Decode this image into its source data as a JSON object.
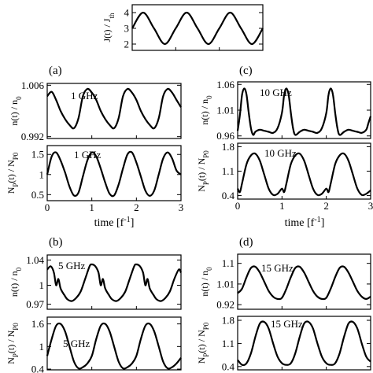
{
  "figure": {
    "panel_labels": [
      "(a)",
      "(b)",
      "(c)",
      "(d)"
    ],
    "time_label": "time [f",
    "time_label_exp": "-1",
    "time_label_close": "]"
  },
  "chart_data": [
    {
      "id": "drive",
      "type": "line",
      "ylabel": "J(t) / J_th",
      "ylim": [
        1.6,
        4.5
      ],
      "xlim": [
        0,
        3
      ],
      "yticks": [
        "2",
        "3",
        "4"
      ],
      "ytick_values": [
        2,
        3,
        4
      ],
      "xticks": [],
      "xtick_values": [],
      "series": [
        {
          "x": [
            0.0,
            0.25,
            0.5,
            0.75,
            1.0,
            1.25,
            1.5,
            1.75,
            2.0,
            2.25,
            2.5,
            2.75,
            3.0
          ],
          "y": [
            3.0,
            4.0,
            3.0,
            2.0,
            3.0,
            4.0,
            3.0,
            2.0,
            3.0,
            4.0,
            3.0,
            2.0,
            3.0
          ]
        }
      ]
    },
    {
      "id": "a-carriers",
      "type": "line",
      "annotation": "1 GHz",
      "ylabel": "n(t) / n_0",
      "ylim": [
        0.9915,
        1.0065
      ],
      "xlim": [
        0,
        3
      ],
      "yticks": [
        "1.006",
        "0.992"
      ],
      "ytick_values": [
        1.006,
        0.992
      ],
      "xticks": [],
      "xtick_values": [],
      "series": [
        {
          "x": [
            0.0,
            0.1,
            0.2,
            0.3,
            0.4,
            0.5,
            0.6,
            0.7,
            0.8,
            0.9,
            1.0,
            1.1,
            1.2,
            1.3,
            1.4,
            1.5,
            1.6,
            1.7,
            1.8,
            1.9,
            2.0,
            2.1,
            2.2,
            2.3,
            2.4,
            2.5,
            2.6,
            2.7,
            2.8,
            2.9,
            3.0
          ],
          "y": [
            1.003,
            1.0042,
            1.002,
            0.999,
            0.9968,
            0.9952,
            0.9943,
            0.997,
            1.003,
            1.005,
            1.004,
            1.002,
            0.999,
            0.9968,
            0.9952,
            0.9943,
            0.997,
            1.003,
            1.005,
            1.004,
            1.002,
            0.999,
            0.9968,
            0.9952,
            0.9943,
            0.997,
            1.003,
            1.005,
            1.004,
            1.002,
            1.0
          ]
        }
      ]
    },
    {
      "id": "a-photons",
      "type": "line",
      "annotation": "1 GHz",
      "ylabel": "N_P(t) / N_P0",
      "ylim": [
        0.35,
        1.72
      ],
      "xlim": [
        0,
        3
      ],
      "yticks": [
        "1.5",
        "1",
        "0.5"
      ],
      "ytick_values": [
        1.5,
        1.0,
        0.5
      ],
      "xticks": [
        "0",
        "1",
        "2",
        "3"
      ],
      "xtick_values": [
        0,
        1,
        2,
        3
      ],
      "series": [
        {
          "x": [
            0.0,
            0.1,
            0.2,
            0.3,
            0.4,
            0.5,
            0.6,
            0.7,
            0.8,
            0.9,
            1.0,
            1.1,
            1.2,
            1.3,
            1.4,
            1.5,
            1.6,
            1.7,
            1.8,
            1.9,
            2.0,
            2.1,
            2.2,
            2.3,
            2.4,
            2.5,
            2.6,
            2.7,
            2.8,
            2.9,
            3.0
          ],
          "y": [
            1.0,
            1.45,
            1.55,
            1.35,
            1.05,
            0.7,
            0.48,
            0.55,
            0.95,
            1.35,
            1.55,
            1.45,
            1.15,
            0.8,
            0.52,
            0.48,
            0.75,
            1.15,
            1.5,
            1.55,
            1.3,
            0.95,
            0.6,
            0.47,
            0.6,
            1.0,
            1.4,
            1.55,
            1.4,
            1.1,
            1.0
          ]
        }
      ]
    },
    {
      "id": "c-carriers",
      "type": "line",
      "annotation": "10 GHz",
      "ylabel": "n(t) / n_0",
      "ylim": [
        0.955,
        1.065
      ],
      "xlim": [
        0,
        3
      ],
      "yticks": [
        "1.06",
        "1.01",
        "0.96"
      ],
      "ytick_values": [
        1.06,
        1.01,
        0.96
      ],
      "xticks": [],
      "xtick_values": [],
      "series": [
        {
          "x": [
            0.0,
            0.05,
            0.1,
            0.15,
            0.2,
            0.25,
            0.3,
            0.35,
            0.4,
            0.5,
            0.6,
            0.7,
            0.8,
            0.9,
            1.0,
            1.05,
            1.1,
            1.15,
            1.2,
            1.25,
            1.3,
            1.4,
            1.5,
            1.6,
            1.7,
            1.8,
            1.9,
            2.0,
            2.05,
            2.1,
            2.15,
            2.2,
            2.25,
            2.3,
            2.4,
            2.5,
            2.6,
            2.7,
            2.8,
            2.9,
            2.95,
            3.0
          ],
          "y": [
            0.97,
            1.0,
            1.04,
            1.052,
            1.04,
            1.005,
            0.975,
            0.962,
            0.968,
            0.972,
            0.97,
            0.968,
            0.966,
            0.975,
            1.005,
            1.04,
            1.052,
            1.04,
            1.005,
            0.975,
            0.962,
            0.968,
            0.972,
            0.97,
            0.968,
            0.966,
            0.975,
            1.005,
            1.04,
            1.052,
            1.04,
            1.005,
            0.975,
            0.962,
            0.968,
            0.972,
            0.97,
            0.968,
            0.966,
            0.972,
            0.985,
            0.998
          ]
        }
      ]
    },
    {
      "id": "c-photons",
      "type": "line",
      "annotation": "10 GHz",
      "ylabel": "N_P(t) / N_P0",
      "ylim": [
        0.3,
        1.9
      ],
      "xlim": [
        0,
        3
      ],
      "yticks": [
        "1.8",
        "1.1",
        "0.4"
      ],
      "ytick_values": [
        1.8,
        1.1,
        0.4
      ],
      "xticks": [
        "0",
        "1",
        "2",
        "3"
      ],
      "xtick_values": [
        0,
        1,
        2,
        3
      ],
      "series": [
        {
          "x": [
            0.0,
            0.05,
            0.1,
            0.2,
            0.3,
            0.4,
            0.5,
            0.6,
            0.7,
            0.8,
            0.9,
            1.0,
            1.05,
            1.1,
            1.2,
            1.3,
            1.4,
            1.5,
            1.6,
            1.7,
            1.8,
            1.9,
            2.0,
            2.05,
            2.1,
            2.2,
            2.3,
            2.4,
            2.5,
            2.6,
            2.7,
            2.8,
            2.9,
            3.0
          ],
          "y": [
            0.6,
            0.5,
            0.75,
            1.3,
            1.55,
            1.6,
            1.4,
            1.0,
            0.6,
            0.42,
            0.45,
            0.6,
            0.5,
            0.75,
            1.3,
            1.55,
            1.6,
            1.4,
            1.0,
            0.6,
            0.42,
            0.45,
            0.6,
            0.5,
            0.75,
            1.3,
            1.55,
            1.6,
            1.4,
            1.0,
            0.6,
            0.42,
            0.45,
            0.55
          ]
        }
      ]
    },
    {
      "id": "b-carriers",
      "type": "line",
      "annotation": "5 GHz",
      "ylabel": "n(t) / n_0",
      "ylim": [
        0.962,
        1.048
      ],
      "xlim": [
        0,
        3
      ],
      "yticks": [
        "1.04",
        "1",
        "0.97"
      ],
      "ytick_values": [
        1.04,
        1.0,
        0.97
      ],
      "xticks": [],
      "xtick_values": [],
      "series": [
        {
          "x": [
            0.0,
            0.08,
            0.15,
            0.2,
            0.25,
            0.3,
            0.38,
            0.45,
            0.55,
            0.65,
            0.75,
            0.85,
            0.95,
            1.0,
            1.08,
            1.15,
            1.2,
            1.25,
            1.3,
            1.38,
            1.45,
            1.55,
            1.65,
            1.75,
            1.85,
            1.95,
            2.0,
            2.08,
            2.15,
            2.2,
            2.25,
            2.3,
            2.38,
            2.45,
            2.55,
            2.65,
            2.75,
            2.85,
            2.95,
            3.0
          ],
          "y": [
            1.025,
            1.03,
            1.02,
            1.0,
            1.01,
            0.995,
            0.985,
            0.978,
            0.975,
            0.98,
            0.99,
            1.01,
            1.03,
            1.033,
            1.03,
            1.02,
            1.0,
            1.01,
            0.995,
            0.985,
            0.978,
            0.975,
            0.98,
            0.99,
            1.01,
            1.03,
            1.033,
            1.03,
            1.02,
            1.0,
            1.01,
            0.995,
            0.985,
            0.978,
            0.975,
            0.98,
            0.99,
            1.01,
            1.025,
            1.02
          ]
        }
      ]
    },
    {
      "id": "b-photons",
      "type": "line",
      "annotation": "5 GHz",
      "ylabel": "N_P(t) / N_P0",
      "ylim": [
        0.38,
        1.78
      ],
      "xlim": [
        0,
        3
      ],
      "yticks": [
        "1.6",
        "1",
        "0.4"
      ],
      "ytick_values": [
        1.6,
        1.0,
        0.4
      ],
      "xticks": [
        "0",
        "1",
        "2",
        "3"
      ],
      "xtick_values": [
        0,
        1,
        2,
        3
      ],
      "series": [
        {
          "x": [
            0.0,
            0.1,
            0.2,
            0.3,
            0.4,
            0.5,
            0.6,
            0.7,
            0.8,
            0.9,
            1.0,
            1.1,
            1.2,
            1.3,
            1.4,
            1.5,
            1.6,
            1.7,
            1.8,
            1.9,
            2.0,
            2.1,
            2.2,
            2.3,
            2.4,
            2.5,
            2.6,
            2.7,
            2.8,
            2.9,
            3.0
          ],
          "y": [
            0.75,
            1.2,
            1.55,
            1.6,
            1.4,
            1.0,
            0.6,
            0.42,
            0.45,
            0.55,
            0.75,
            1.2,
            1.55,
            1.6,
            1.4,
            1.0,
            0.6,
            0.42,
            0.45,
            0.55,
            0.75,
            1.2,
            1.55,
            1.6,
            1.4,
            1.0,
            0.6,
            0.42,
            0.45,
            0.55,
            0.7
          ]
        }
      ]
    },
    {
      "id": "d-carriers",
      "type": "line",
      "annotation": "15 GHz",
      "ylabel": "n(t) / n_0",
      "ylim": [
        0.9,
        1.14
      ],
      "xlim": [
        0,
        3
      ],
      "yticks": [
        "1.1",
        "1.01",
        "0.92"
      ],
      "ytick_values": [
        1.1,
        1.01,
        0.92
      ],
      "xticks": [],
      "xtick_values": [],
      "series": [
        {
          "x": [
            0.0,
            0.1,
            0.2,
            0.3,
            0.4,
            0.5,
            0.6,
            0.7,
            0.8,
            0.9,
            1.0,
            1.1,
            1.2,
            1.3,
            1.4,
            1.5,
            1.6,
            1.7,
            1.8,
            1.9,
            2.0,
            2.1,
            2.2,
            2.3,
            2.4,
            2.5,
            2.6,
            2.7,
            2.8,
            2.9,
            3.0
          ],
          "y": [
            0.97,
            0.99,
            1.04,
            1.08,
            1.085,
            1.06,
            1.02,
            0.98,
            0.955,
            0.945,
            0.95,
            0.99,
            1.04,
            1.08,
            1.085,
            1.06,
            1.02,
            0.98,
            0.955,
            0.945,
            0.95,
            0.99,
            1.04,
            1.08,
            1.085,
            1.06,
            1.02,
            0.98,
            0.955,
            0.945,
            0.955
          ]
        }
      ]
    },
    {
      "id": "d-photons",
      "type": "line",
      "annotation": "15 GHz",
      "ylabel": "N_P(t) / N_P0",
      "ylim": [
        0.3,
        1.92
      ],
      "xlim": [
        0,
        3
      ],
      "yticks": [
        "1.8",
        "1.1",
        "0.4"
      ],
      "ytick_values": [
        1.8,
        1.1,
        0.4
      ],
      "xticks": [
        "0",
        "1",
        "2",
        "3"
      ],
      "xtick_values": [
        0,
        1,
        2,
        3
      ],
      "series": [
        {
          "x": [
            0.0,
            0.1,
            0.2,
            0.3,
            0.4,
            0.5,
            0.6,
            0.7,
            0.8,
            0.9,
            1.0,
            1.1,
            1.2,
            1.3,
            1.4,
            1.5,
            1.6,
            1.7,
            1.8,
            1.9,
            2.0,
            2.1,
            2.2,
            2.3,
            2.4,
            2.5,
            2.6,
            2.7,
            2.8,
            2.9,
            3.0
          ],
          "y": [
            0.6,
            0.45,
            0.5,
            0.8,
            1.3,
            1.7,
            1.75,
            1.55,
            1.1,
            0.7,
            0.5,
            0.45,
            0.5,
            0.8,
            1.3,
            1.7,
            1.75,
            1.55,
            1.1,
            0.7,
            0.5,
            0.45,
            0.5,
            0.8,
            1.3,
            1.7,
            1.75,
            1.55,
            1.1,
            0.7,
            0.55
          ]
        }
      ]
    }
  ]
}
